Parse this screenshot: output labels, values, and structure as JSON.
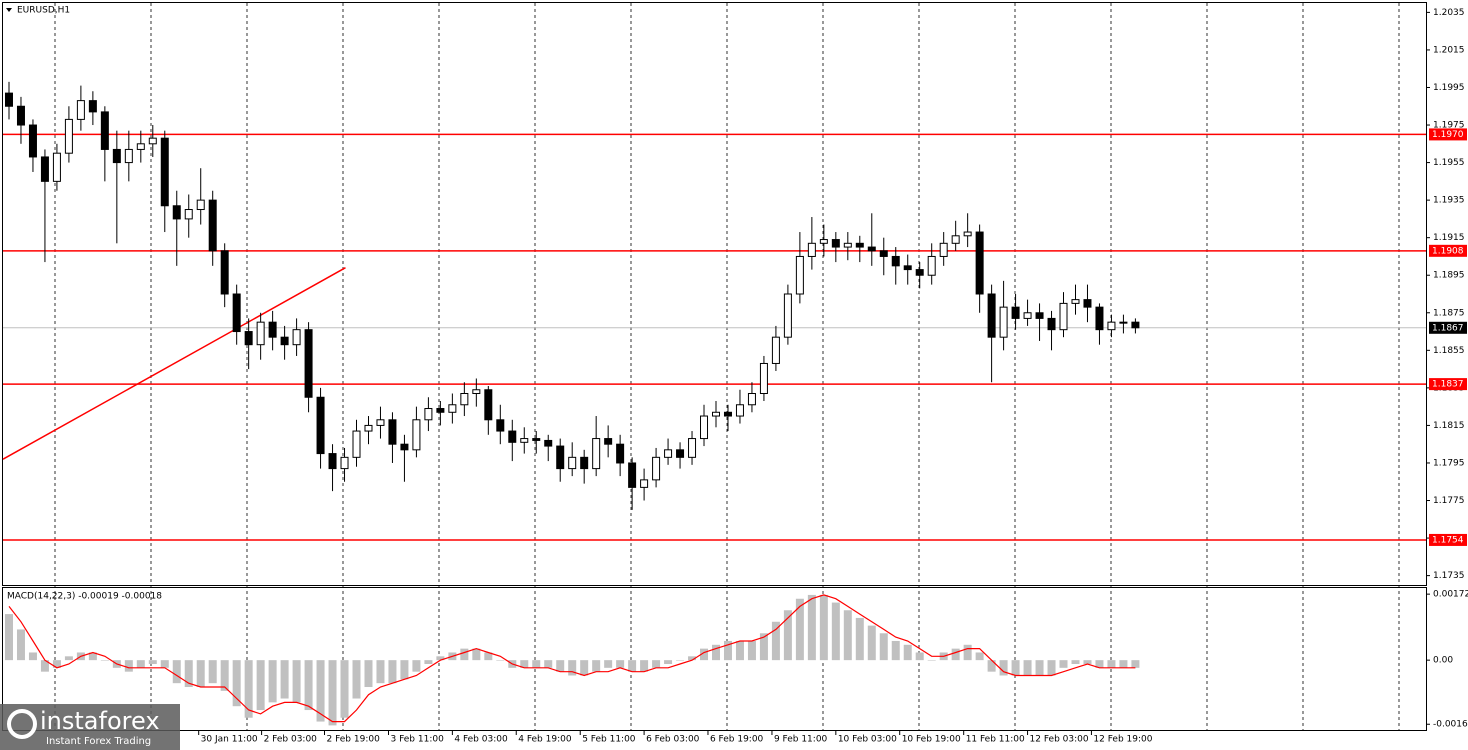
{
  "chart_data": [
    {
      "type": "candlestick",
      "title": "EURUSD,H1",
      "xlim": [
        -0.5,
        118.25
      ],
      "ylim": [
        1.173,
        1.204
      ],
      "xticks": [
        {
          "value": 15.83,
          "label": "30 Jan 11:00"
        },
        {
          "value": 21.08,
          "label": "2 Feb 03:00"
        },
        {
          "value": 26.33,
          "label": "2 Feb 19:00"
        },
        {
          "value": 31.67,
          "label": "3 Feb 11:00"
        },
        {
          "value": 37,
          "label": "4 Feb 03:00"
        },
        {
          "value": 42.33,
          "label": "4 Feb 19:00"
        },
        {
          "value": 47.67,
          "label": "5 Feb 11:00"
        },
        {
          "value": 53,
          "label": "6 Feb 03:00"
        },
        {
          "value": 58.33,
          "label": "6 Feb 19:00"
        },
        {
          "value": 63.67,
          "label": "9 Feb 11:00"
        },
        {
          "value": 69,
          "label": "10 Feb 03:00"
        },
        {
          "value": 74.33,
          "label": "10 Feb 19:00"
        },
        {
          "value": 79.67,
          "label": "11 Feb 11:00"
        },
        {
          "value": 85,
          "label": "12 Feb 03:00"
        },
        {
          "value": 90.33,
          "label": "12 Feb 19:00"
        }
      ],
      "yticks": [
        1.2035,
        1.2015,
        1.1995,
        1.1975,
        1.1955,
        1.1935,
        1.1915,
        1.1895,
        1.1875,
        1.1855,
        1.1835,
        1.1815,
        1.1795,
        1.1775,
        1.1755,
        1.1735
      ],
      "up_color": "#ffffff",
      "down_color": "#000000",
      "open": [
        1.1992,
        1.1985,
        1.1975,
        1.1958,
        1.1945,
        1.196,
        1.1978,
        1.1988,
        1.1982,
        1.1962,
        1.1955,
        1.1962,
        1.1965,
        1.1968,
        1.1932,
        1.1925,
        1.193,
        1.1935,
        1.1908,
        1.1885,
        1.1865,
        1.1858,
        1.187,
        1.1862,
        1.1858,
        1.1866,
        1.183,
        1.18,
        1.1792,
        1.1798,
        1.1812,
        1.1815,
        1.1818,
        1.1805,
        1.1802,
        1.1818,
        1.1824,
        1.1822,
        1.1826,
        1.1832,
        1.1834,
        1.1818,
        1.1812,
        1.1806,
        1.1808,
        1.1807,
        1.1804,
        1.1792,
        1.1798,
        1.1792,
        1.1808,
        1.1805,
        1.1795,
        1.1782,
        1.1786,
        1.1798,
        1.1802,
        1.1798,
        1.1808,
        1.182,
        1.1822,
        1.182,
        1.1826,
        1.1832,
        1.1848,
        1.1862,
        1.1885,
        1.1905,
        1.1912,
        1.1914,
        1.191,
        1.1912,
        1.191,
        1.1908,
        1.1905,
        1.19,
        1.1898,
        1.1895,
        1.1905,
        1.1912,
        1.1916,
        1.1918,
        1.1885,
        1.1862,
        1.1878,
        1.1872,
        1.1875,
        1.1872,
        1.1866,
        1.188,
        1.1882,
        1.1878,
        1.1866,
        1.187,
        1.187
      ],
      "high": [
        1.1998,
        1.199,
        1.1978,
        1.1962,
        1.1965,
        1.1985,
        1.1996,
        1.1993,
        1.1985,
        1.1972,
        1.1972,
        1.1972,
        1.1975,
        1.1972,
        1.194,
        1.1938,
        1.1952,
        1.194,
        1.1912,
        1.189,
        1.1872,
        1.1875,
        1.1876,
        1.1868,
        1.1872,
        1.187,
        1.1835,
        1.1805,
        1.1803,
        1.1818,
        1.182,
        1.1825,
        1.1822,
        1.181,
        1.1825,
        1.183,
        1.1828,
        1.1832,
        1.1838,
        1.184,
        1.1836,
        1.1826,
        1.1818,
        1.1814,
        1.1812,
        1.181,
        1.1808,
        1.1806,
        1.1802,
        1.182,
        1.1815,
        1.181,
        1.1798,
        1.1792,
        1.1803,
        1.1808,
        1.1806,
        1.1812,
        1.1826,
        1.1828,
        1.1826,
        1.1834,
        1.1838,
        1.1852,
        1.1868,
        1.189,
        1.1918,
        1.1926,
        1.1922,
        1.1918,
        1.1918,
        1.1916,
        1.1928,
        1.1915,
        1.191,
        1.1906,
        1.1902,
        1.1912,
        1.1918,
        1.1924,
        1.1928,
        1.1922,
        1.189,
        1.1892,
        1.1885,
        1.1882,
        1.188,
        1.1876,
        1.1886,
        1.189,
        1.189,
        1.188,
        1.1874,
        1.1874,
        1.1872
      ],
      "low": [
        1.1978,
        1.1965,
        1.195,
        1.1902,
        1.194,
        1.1955,
        1.1972,
        1.1975,
        1.1945,
        1.1912,
        1.1945,
        1.1955,
        1.1958,
        1.1918,
        1.19,
        1.1915,
        1.1922,
        1.19,
        1.1878,
        1.1858,
        1.1845,
        1.185,
        1.1855,
        1.185,
        1.1852,
        1.1822,
        1.1792,
        1.178,
        1.1785,
        1.1793,
        1.1805,
        1.1808,
        1.1795,
        1.1785,
        1.1798,
        1.1812,
        1.1815,
        1.1816,
        1.182,
        1.1825,
        1.181,
        1.1805,
        1.1796,
        1.18,
        1.18,
        1.1796,
        1.1785,
        1.1788,
        1.1784,
        1.1788,
        1.1798,
        1.1788,
        1.177,
        1.1775,
        1.1782,
        1.1794,
        1.1792,
        1.1794,
        1.1804,
        1.1814,
        1.1812,
        1.1816,
        1.1822,
        1.1828,
        1.1844,
        1.1858,
        1.188,
        1.1898,
        1.1905,
        1.1902,
        1.1903,
        1.1902,
        1.19,
        1.1895,
        1.189,
        1.189,
        1.1888,
        1.189,
        1.19,
        1.1908,
        1.191,
        1.1875,
        1.1838,
        1.1855,
        1.1866,
        1.1868,
        1.186,
        1.1855,
        1.1862,
        1.1874,
        1.187,
        1.1858,
        1.1862,
        1.1864,
        1.1864
      ],
      "close": [
        1.1985,
        1.1975,
        1.1958,
        1.1945,
        1.196,
        1.1978,
        1.1988,
        1.1982,
        1.1962,
        1.1955,
        1.1962,
        1.1965,
        1.1968,
        1.1932,
        1.1925,
        1.193,
        1.1935,
        1.1908,
        1.1885,
        1.1865,
        1.1858,
        1.187,
        1.1862,
        1.1858,
        1.1866,
        1.183,
        1.18,
        1.1792,
        1.1798,
        1.1812,
        1.1815,
        1.1818,
        1.1805,
        1.1802,
        1.1818,
        1.1824,
        1.1822,
        1.1826,
        1.1832,
        1.1834,
        1.1818,
        1.1812,
        1.1806,
        1.1808,
        1.1807,
        1.1804,
        1.1792,
        1.1798,
        1.1792,
        1.1808,
        1.1805,
        1.1795,
        1.1782,
        1.1786,
        1.1798,
        1.1802,
        1.1798,
        1.1808,
        1.182,
        1.1822,
        1.182,
        1.1826,
        1.1832,
        1.1848,
        1.1862,
        1.1885,
        1.1905,
        1.1912,
        1.1914,
        1.191,
        1.1912,
        1.191,
        1.1908,
        1.1905,
        1.19,
        1.1898,
        1.1895,
        1.1905,
        1.1912,
        1.1916,
        1.1918,
        1.1885,
        1.1862,
        1.1878,
        1.1872,
        1.1875,
        1.1872,
        1.1866,
        1.188,
        1.1882,
        1.1878,
        1.1866,
        1.187,
        1.187,
        1.1867
      ],
      "levels": [
        {
          "value": 1.197,
          "label": "1.1970"
        },
        {
          "value": 1.1908,
          "label": "1.1908"
        },
        {
          "value": 1.1837,
          "label": "1.1837"
        },
        {
          "value": 1.1754,
          "label": "1.1754"
        }
      ],
      "level_color": "#ff0000",
      "current_price": {
        "value": 1.1867,
        "label": "1.1867"
      },
      "trendline": {
        "x": [
          -0.5,
          28.08
        ],
        "y": [
          1.1797,
          1.1899
        ],
        "color": "#ff0000"
      },
      "logo": {
        "name": "instaforex",
        "tagline": "Instant Forex Trading"
      }
    },
    {
      "type": "macd",
      "title": "MACD(14,22,3) -0.00019 -0.00018",
      "xlim": [
        -0.5,
        118.25
      ],
      "y2lim": [
        -0.00182,
        0.00188
      ],
      "y2ticks": [
        0.00172,
        {
          "value": 0,
          "label": "0.00"
        },
        -0.00167
      ],
      "hist_color": "#c0c0c0",
      "signal_color": "#ff0000",
      "histogram": [
        0.0012,
        0.0008,
        0.0002,
        -0.0003,
        -0.0002,
        0.0001,
        0.0002,
        0.0002,
        0,
        -0.0002,
        -0.0003,
        -0.0002,
        -0.0001,
        -0.0002,
        -0.0006,
        -0.0007,
        -0.0007,
        -0.0006,
        -0.0008,
        -0.0012,
        -0.0015,
        -0.0013,
        -0.0011,
        -0.001,
        -0.0011,
        -0.0013,
        -0.0016,
        -0.0017,
        -0.0015,
        -0.001,
        -0.0007,
        -0.0006,
        -0.0006,
        -0.0005,
        -0.0003,
        -0.0001,
        0.0001,
        0.0002,
        0.0003,
        0.0003,
        0.0002,
        0,
        -0.0002,
        -0.0002,
        -0.0002,
        -0.0002,
        -0.0003,
        -0.0004,
        -0.0004,
        -0.0003,
        -0.0002,
        -0.0002,
        -0.0003,
        -0.0003,
        -0.0002,
        -0.0001,
        0,
        0.0001,
        0.0003,
        0.0004,
        0.0005,
        0.0005,
        0.0005,
        0.0007,
        0.001,
        0.0013,
        0.0016,
        0.0017,
        0.0017,
        0.0015,
        0.0013,
        0.0011,
        0.0009,
        0.0007,
        0.0005,
        0.0004,
        0.0002,
        0,
        0.0002,
        0.0003,
        0.0004,
        0.0002,
        -0.0003,
        -0.0004,
        -0.0004,
        -0.0004,
        -0.0004,
        -0.0004,
        -0.0002,
        -0.0001,
        -0.0001,
        -0.0002,
        -0.0002,
        -0.0002,
        -0.0002
      ],
      "signal": [
        0.0014,
        0.001,
        0.0005,
        0,
        -0.0002,
        -0.0001,
        0.0001,
        0.0002,
        0.0001,
        -0.0001,
        -0.0002,
        -0.0002,
        -0.0002,
        -0.0002,
        -0.0004,
        -0.0006,
        -0.0007,
        -0.0007,
        -0.0007,
        -0.001,
        -0.0013,
        -0.0014,
        -0.0012,
        -0.0011,
        -0.0011,
        -0.0012,
        -0.0014,
        -0.0016,
        -0.0016,
        -0.0013,
        -0.0009,
        -0.0007,
        -0.0006,
        -0.0005,
        -0.0004,
        -0.0002,
        0,
        0.0001,
        0.0002,
        0.0003,
        0.0002,
        0.0001,
        -0.0001,
        -0.0002,
        -0.0002,
        -0.0002,
        -0.0003,
        -0.0003,
        -0.0004,
        -0.0003,
        -0.0003,
        -0.0002,
        -0.0003,
        -0.0003,
        -0.0002,
        -0.0002,
        -0.0001,
        0,
        0.0002,
        0.0003,
        0.0004,
        0.0005,
        0.0005,
        0.0006,
        0.0008,
        0.0011,
        0.0014,
        0.0016,
        0.0017,
        0.0016,
        0.0014,
        0.0012,
        0.001,
        0.0008,
        0.0006,
        0.0005,
        0.0003,
        0.0001,
        0.0001,
        0.0002,
        0.0003,
        0.0003,
        0,
        -0.0003,
        -0.0004,
        -0.0004,
        -0.0004,
        -0.0004,
        -0.0003,
        -0.0002,
        -0.0001,
        -0.0002,
        -0.0002,
        -0.0002,
        -0.0002
      ]
    }
  ]
}
